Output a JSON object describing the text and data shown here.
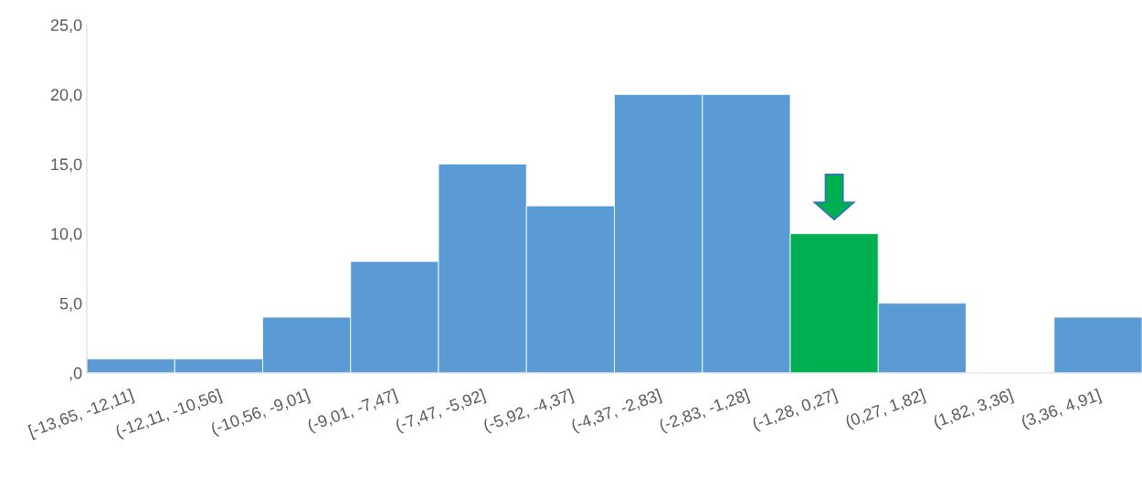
{
  "chart_data": {
    "type": "bar",
    "categories": [
      "[-13,65, -12,11]",
      "(-12,11, -10,56]",
      "(-10,56, -9,01]",
      "(-9,01, -7,47]",
      "(-7,47, -5,92]",
      "(-5,92, -4,37]",
      "(-4,37, -2,83]",
      "(-2,83, -1,28]",
      "(-1,28, 0,27]",
      "(0,27, 1,82]",
      "(1,82, 3,36]",
      "(3,36, 4,91]"
    ],
    "values": [
      1,
      1,
      4,
      8,
      15,
      12,
      20,
      20,
      10,
      5,
      0,
      4
    ],
    "colors": [
      "#5b9bd5",
      "#5b9bd5",
      "#5b9bd5",
      "#5b9bd5",
      "#5b9bd5",
      "#5b9bd5",
      "#5b9bd5",
      "#5b9bd5",
      "#00b050",
      "#5b9bd5",
      "#5b9bd5",
      "#5b9bd5"
    ],
    "ylim": [
      0,
      25
    ],
    "yticks": [
      {
        "value": 0,
        "label": ",0"
      },
      {
        "value": 5,
        "label": "5,0"
      },
      {
        "value": 10,
        "label": "10,0"
      },
      {
        "value": 15,
        "label": "15,0"
      },
      {
        "value": 20,
        "label": "20,0"
      },
      {
        "value": 25,
        "label": "25,0"
      }
    ],
    "grid": false,
    "legend": false
  }
}
